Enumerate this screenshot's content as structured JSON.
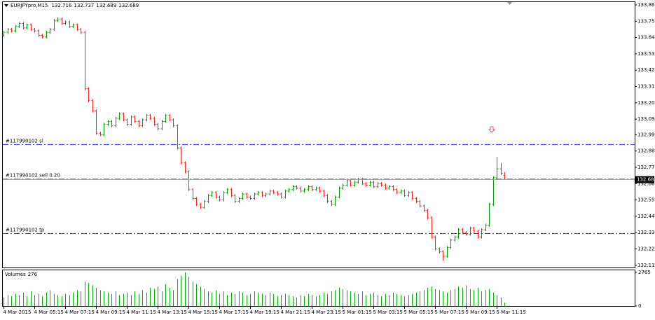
{
  "chart_data": {
    "type": "ohlc",
    "symbol": "EURJPYpro,M15",
    "up_color": "#00a000",
    "down_color": "#ff2020",
    "ylim": [
      132.095,
      133.884
    ],
    "yticks": [
      133.865,
      133.755,
      133.645,
      133.535,
      133.425,
      133.315,
      133.205,
      133.095,
      {
        "value": 132.99,
        "label": "132.990"
      },
      {
        "value": 132.88,
        "label": "132.880"
      },
      {
        "value": 132.77,
        "label": "132.770"
      },
      {
        "value": 132.66,
        "label": "132.660"
      },
      {
        "value": 132.55,
        "label": "132.550"
      },
      {
        "value": 132.44,
        "label": "132.440"
      },
      {
        "value": 132.33,
        "label": "132.330"
      },
      {
        "value": 132.22,
        "label": "132.220"
      },
      {
        "value": 132.11,
        "label": "132.110"
      }
    ],
    "categories": [
      "4 Mar 2015",
      null,
      null,
      null,
      null,
      null,
      null,
      null,
      "4 Mar 05:15",
      null,
      null,
      null,
      null,
      null,
      null,
      null,
      "4 Mar 07:15",
      null,
      null,
      null,
      null,
      null,
      null,
      null,
      "4 Mar 09:15",
      null,
      null,
      null,
      null,
      null,
      null,
      null,
      "4 Mar 11:15",
      null,
      null,
      null,
      null,
      null,
      null,
      null,
      "4 Mar 13:15",
      null,
      null,
      null,
      null,
      null,
      null,
      null,
      "4 Mar 15:15",
      null,
      null,
      null,
      null,
      null,
      null,
      null,
      "4 Mar 17:15",
      null,
      null,
      null,
      null,
      null,
      null,
      null,
      "4 Mar 19:15",
      null,
      null,
      null,
      null,
      null,
      null,
      null,
      "4 Mar 21:15",
      null,
      null,
      null,
      null,
      null,
      null,
      null,
      "4 Mar 23:15",
      null,
      null,
      null,
      null,
      null,
      null,
      null,
      "5 Mar 01:15",
      null,
      null,
      null,
      null,
      null,
      null,
      null,
      "5 Mar 03:15",
      null,
      null,
      null,
      null,
      null,
      null,
      null,
      "5 Mar 05:15",
      null,
      null,
      null,
      null,
      null,
      null,
      null,
      "5 Mar 07:15",
      null,
      null,
      null,
      null,
      null,
      null,
      null,
      "5 Mar 09:15",
      null,
      null,
      null,
      null,
      null,
      null,
      null,
      "5 Mar 11:15",
      null,
      null
    ],
    "ohlc": [
      [
        133.66,
        133.69,
        133.65,
        133.68
      ],
      [
        133.68,
        133.71,
        133.67,
        133.7
      ],
      [
        133.7,
        133.71,
        133.68,
        133.69
      ],
      [
        133.69,
        133.73,
        133.68,
        133.72
      ],
      [
        133.72,
        133.75,
        133.71,
        133.74
      ],
      [
        133.74,
        133.75,
        133.7,
        133.71
      ],
      [
        133.71,
        133.74,
        133.7,
        133.73
      ],
      [
        133.73,
        133.74,
        133.69,
        133.7
      ],
      [
        133.7,
        133.71,
        133.68,
        133.69
      ],
      [
        133.69,
        133.7,
        133.65,
        133.66
      ],
      [
        133.66,
        133.67,
        133.64,
        133.65
      ],
      [
        133.65,
        133.69,
        133.64,
        133.68
      ],
      [
        133.68,
        133.71,
        133.67,
        133.7
      ],
      [
        133.7,
        133.77,
        133.69,
        133.76
      ],
      [
        133.76,
        133.78,
        133.75,
        133.77
      ],
      [
        133.77,
        133.78,
        133.73,
        133.74
      ],
      [
        133.74,
        133.76,
        133.73,
        133.75
      ],
      [
        133.75,
        133.76,
        133.71,
        133.72
      ],
      [
        133.72,
        133.74,
        133.71,
        133.73
      ],
      [
        133.73,
        133.74,
        133.69,
        133.7
      ],
      [
        133.7,
        133.71,
        133.67,
        133.68
      ],
      [
        133.68,
        133.69,
        133.29,
        133.3
      ],
      [
        133.3,
        133.31,
        133.21,
        133.22
      ],
      [
        133.22,
        133.23,
        133.14,
        133.15
      ],
      [
        133.15,
        133.16,
        132.99,
        133.0
      ],
      [
        133.0,
        133.01,
        132.98,
        132.99
      ],
      [
        132.99,
        133.07,
        132.98,
        133.06
      ],
      [
        133.06,
        133.09,
        133.05,
        133.08
      ],
      [
        133.08,
        133.09,
        133.04,
        133.05
      ],
      [
        133.05,
        133.11,
        133.04,
        133.1
      ],
      [
        133.1,
        133.14,
        133.09,
        133.13
      ],
      [
        133.13,
        133.14,
        133.08,
        133.09
      ],
      [
        133.09,
        133.1,
        133.05,
        133.06
      ],
      [
        133.06,
        133.12,
        133.05,
        133.11
      ],
      [
        133.11,
        133.12,
        133.07,
        133.08
      ],
      [
        133.08,
        133.09,
        133.04,
        133.05
      ],
      [
        133.05,
        133.1,
        133.04,
        133.09
      ],
      [
        133.09,
        133.13,
        133.08,
        133.12
      ],
      [
        133.12,
        133.13,
        133.09,
        133.1
      ],
      [
        133.1,
        133.11,
        133.05,
        133.06
      ],
      [
        133.06,
        133.07,
        133.02,
        133.03
      ],
      [
        133.03,
        133.09,
        133.02,
        133.08
      ],
      [
        133.08,
        133.13,
        133.07,
        133.12
      ],
      [
        133.12,
        133.13,
        133.08,
        133.09
      ],
      [
        133.09,
        133.1,
        133.04,
        133.05
      ],
      [
        133.05,
        133.06,
        132.89,
        132.9
      ],
      [
        132.9,
        132.91,
        132.79,
        132.8
      ],
      [
        132.8,
        132.81,
        132.73,
        132.74
      ],
      [
        132.74,
        132.75,
        132.61,
        132.62
      ],
      [
        132.62,
        132.63,
        132.55,
        132.56
      ],
      [
        132.56,
        132.57,
        132.51,
        132.52
      ],
      [
        132.52,
        132.53,
        132.49,
        132.5
      ],
      [
        132.5,
        132.55,
        132.49,
        132.54
      ],
      [
        132.54,
        132.59,
        132.53,
        132.58
      ],
      [
        132.58,
        132.61,
        132.57,
        132.6
      ],
      [
        132.6,
        132.61,
        132.56,
        132.57
      ],
      [
        132.57,
        132.58,
        132.54,
        132.55
      ],
      [
        132.55,
        132.61,
        132.54,
        132.6
      ],
      [
        132.6,
        132.63,
        132.59,
        132.62
      ],
      [
        132.62,
        132.63,
        132.57,
        132.58
      ],
      [
        132.58,
        132.59,
        132.53,
        132.54
      ],
      [
        132.54,
        132.57,
        132.53,
        132.56
      ],
      [
        132.56,
        132.6,
        132.55,
        132.59
      ],
      [
        132.59,
        132.6,
        132.56,
        132.57
      ],
      [
        132.57,
        132.58,
        132.55,
        132.56
      ],
      [
        132.56,
        132.6,
        132.55,
        132.59
      ],
      [
        132.59,
        132.61,
        132.58,
        132.6
      ],
      [
        132.6,
        132.61,
        132.57,
        132.58
      ],
      [
        132.58,
        132.6,
        132.57,
        132.59
      ],
      [
        132.59,
        132.62,
        132.58,
        132.61
      ],
      [
        132.61,
        132.62,
        132.59,
        132.6
      ],
      [
        132.6,
        132.61,
        132.58,
        132.59
      ],
      [
        132.59,
        132.6,
        132.56,
        132.57
      ],
      [
        132.57,
        132.62,
        132.56,
        132.61
      ],
      [
        132.61,
        132.63,
        132.6,
        132.62
      ],
      [
        132.62,
        132.65,
        132.61,
        132.64
      ],
      [
        132.64,
        132.65,
        132.62,
        132.63
      ],
      [
        132.63,
        132.64,
        132.6,
        132.61
      ],
      [
        132.61,
        132.63,
        132.6,
        132.62
      ],
      [
        132.62,
        132.65,
        132.61,
        132.64
      ],
      [
        132.64,
        132.65,
        132.61,
        132.62
      ],
      [
        132.62,
        132.64,
        132.61,
        132.63
      ],
      [
        132.63,
        132.64,
        132.6,
        132.61
      ],
      [
        132.61,
        132.62,
        132.57,
        132.58
      ],
      [
        132.58,
        132.59,
        132.53,
        132.54
      ],
      [
        132.54,
        132.55,
        132.51,
        132.52
      ],
      [
        132.52,
        132.58,
        132.51,
        132.57
      ],
      [
        132.57,
        132.64,
        132.56,
        132.63
      ],
      [
        132.63,
        132.66,
        132.62,
        132.65
      ],
      [
        132.65,
        132.69,
        132.64,
        132.68
      ],
      [
        132.68,
        132.69,
        132.64,
        132.65
      ],
      [
        132.65,
        132.68,
        132.64,
        132.67
      ],
      [
        132.67,
        132.7,
        132.66,
        132.69
      ],
      [
        132.69,
        132.7,
        132.65,
        132.66
      ],
      [
        132.66,
        132.67,
        132.64,
        132.65
      ],
      [
        132.65,
        132.68,
        132.64,
        132.67
      ],
      [
        132.67,
        132.68,
        132.63,
        132.64
      ],
      [
        132.64,
        132.67,
        132.63,
        132.66
      ],
      [
        132.66,
        132.67,
        132.64,
        132.65
      ],
      [
        132.65,
        132.66,
        132.62,
        132.63
      ],
      [
        132.63,
        132.65,
        132.62,
        132.64
      ],
      [
        132.64,
        132.65,
        132.61,
        132.62
      ],
      [
        132.62,
        132.63,
        132.59,
        132.6
      ],
      [
        132.6,
        132.62,
        132.59,
        132.61
      ],
      [
        132.61,
        132.62,
        132.57,
        132.58
      ],
      [
        132.58,
        132.61,
        132.57,
        132.6
      ],
      [
        132.6,
        132.61,
        132.55,
        132.56
      ],
      [
        132.56,
        132.57,
        132.53,
        132.54
      ],
      [
        132.54,
        132.55,
        132.5,
        132.51
      ],
      [
        132.51,
        132.52,
        132.47,
        132.48
      ],
      [
        132.48,
        132.49,
        132.42,
        132.43
      ],
      [
        132.43,
        132.44,
        132.29,
        132.3
      ],
      [
        132.3,
        132.31,
        132.21,
        132.22
      ],
      [
        132.22,
        132.23,
        132.19,
        132.2
      ],
      [
        132.2,
        132.21,
        132.14,
        132.17
      ],
      [
        132.17,
        132.24,
        132.16,
        132.23
      ],
      [
        132.23,
        132.29,
        132.22,
        132.28
      ],
      [
        132.28,
        132.31,
        132.27,
        132.3
      ],
      [
        132.3,
        132.36,
        132.29,
        132.35
      ],
      [
        132.35,
        132.36,
        132.32,
        132.33
      ],
      [
        132.33,
        132.34,
        132.31,
        132.32
      ],
      [
        132.32,
        132.37,
        132.31,
        132.36
      ],
      [
        132.36,
        132.37,
        132.33,
        132.34
      ],
      [
        132.34,
        132.35,
        132.29,
        132.3
      ],
      [
        132.3,
        132.36,
        132.29,
        132.35
      ],
      [
        132.35,
        132.39,
        132.34,
        132.38
      ],
      [
        132.38,
        132.53,
        132.37,
        132.52
      ],
      [
        132.52,
        132.71,
        132.51,
        132.7
      ],
      [
        132.7,
        132.84,
        132.69,
        132.76
      ],
      [
        132.76,
        132.8,
        132.72,
        132.73
      ],
      [
        132.716,
        132.737,
        132.689,
        132.689
      ]
    ],
    "levels": [
      {
        "label": "#117990102 sl",
        "value": 132.926,
        "color": "#3a3aff"
      },
      {
        "label": "#117990102 sell 0.20",
        "value": 132.695,
        "color": "#6a9a6a"
      },
      {
        "label": "#117990102 tp",
        "value": 132.327,
        "color": "#3a3aff"
      }
    ],
    "volume": {
      "label": "Volumes",
      "color": "#00b000",
      "ylim": [
        0,
        2765
      ],
      "yticks": [
        0,
        2765
      ],
      "values": [
        700,
        900,
        800,
        1000,
        900,
        1100,
        800,
        1200,
        900,
        1000,
        800,
        1100,
        1300,
        1000,
        900,
        800,
        1000,
        900,
        1100,
        1300,
        1200,
        2000,
        1900,
        1700,
        1500,
        1300,
        1200,
        1100,
        1000,
        1200,
        900,
        1000,
        1100,
        900,
        1200,
        1000,
        1300,
        1100,
        1500,
        1400,
        1600,
        1200,
        1800,
        1500,
        1300,
        2200,
        2500,
        2765,
        2400,
        2000,
        1800,
        1600,
        1400,
        1200,
        1100,
        1300,
        1000,
        1200,
        900,
        1100,
        1000,
        1200,
        1100,
        900,
        1000,
        1200,
        1100,
        1000,
        900,
        1100,
        1000,
        800,
        900,
        1000,
        900,
        800,
        700,
        900,
        800,
        1000,
        900,
        800,
        900,
        1100,
        1000,
        1200,
        1300,
        1500,
        1400,
        1300,
        1200,
        1100,
        1000,
        1200,
        900,
        1000,
        1100,
        900,
        800,
        1000,
        900,
        1100,
        1000,
        900,
        800,
        900,
        1000,
        1100,
        1200,
        1300,
        1500,
        1600,
        1400,
        1300,
        1200,
        1100,
        1300,
        1400,
        1600,
        1500,
        1700,
        1400,
        1300,
        1500,
        1200,
        1300,
        1400,
        1100,
        900,
        700,
        276
      ]
    }
  }
}
